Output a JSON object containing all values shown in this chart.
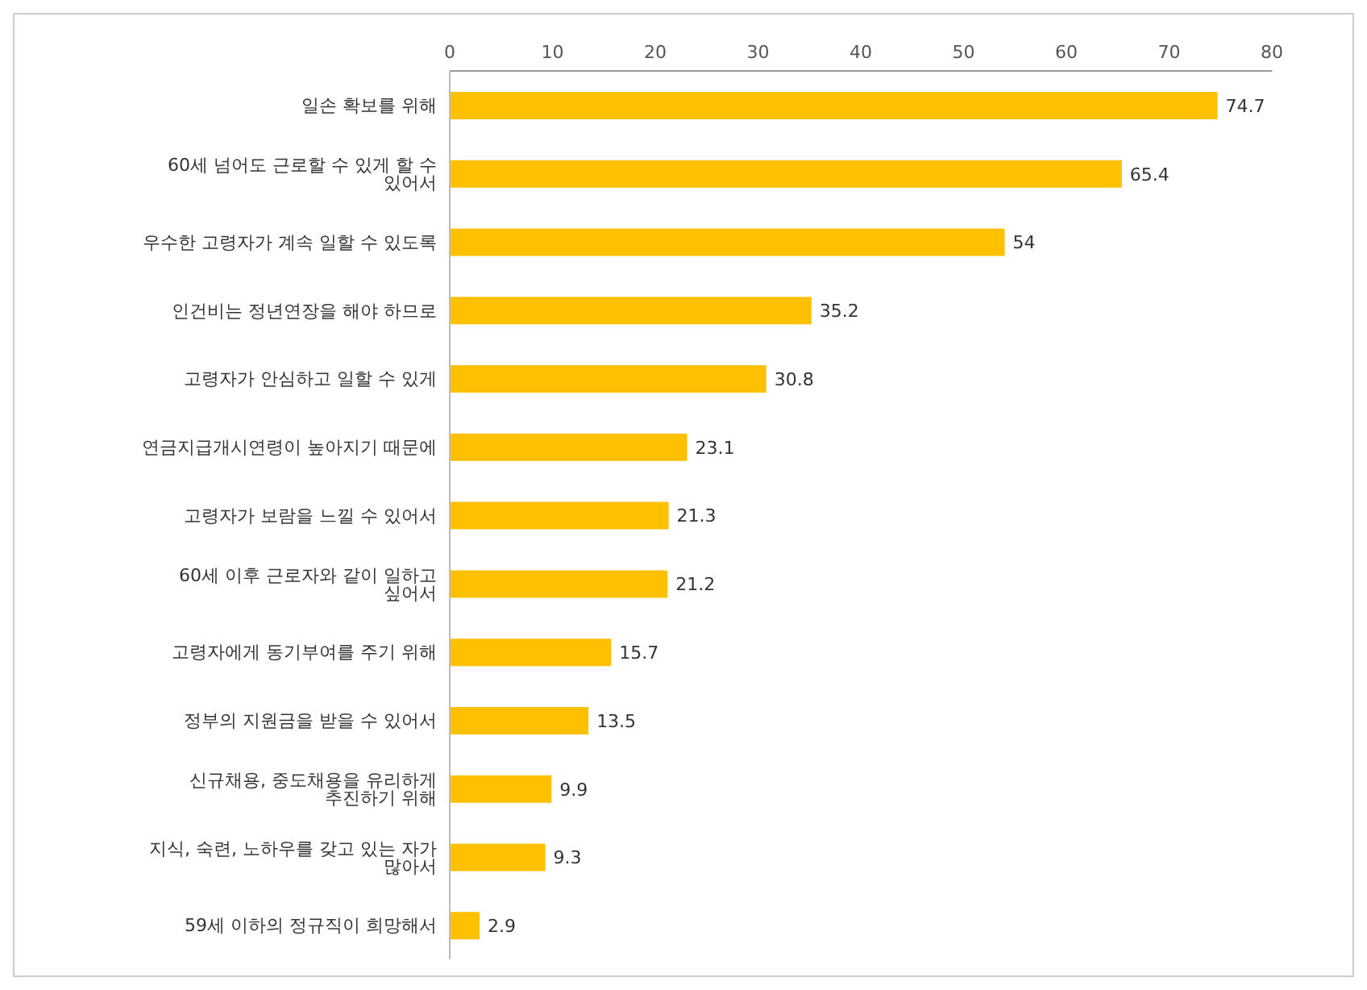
{
  "chart_data": {
    "type": "bar",
    "orientation": "horizontal",
    "categories": [
      "일손 확보를 위해",
      "60세 넘어도 근로할 수 있게 할 수 있어서",
      "우수한 고령자가 계속 일할 수 있도록",
      "인건비는 정년연장을 해야 하므로",
      "고령자가 안심하고 일할 수 있게",
      "연금지급개시연령이 높아지기 때문에",
      "고령자가 보람을 느낄 수 있어서",
      "60세 이후 근로자와 같이 일하고 싶어서",
      "고령자에게 동기부여를 주기 위해",
      "정부의 지원금을 받을 수 있어서",
      "신규채용, 중도채용을 유리하게 추진하기 위해",
      "지식, 숙련, 노하우를 갖고 있는 자가 많아서",
      "59세 이하의 정규직이 희망해서"
    ],
    "values": [
      74.7,
      65.4,
      54,
      35.2,
      30.8,
      23.1,
      21.3,
      21.2,
      15.7,
      13.5,
      9.9,
      9.3,
      2.9
    ],
    "color": "#ffc000",
    "xlim": [
      0,
      80
    ],
    "xticks": [
      0,
      10,
      20,
      30,
      40,
      50,
      60,
      70,
      80
    ],
    "grid": false,
    "data_labels": true
  }
}
